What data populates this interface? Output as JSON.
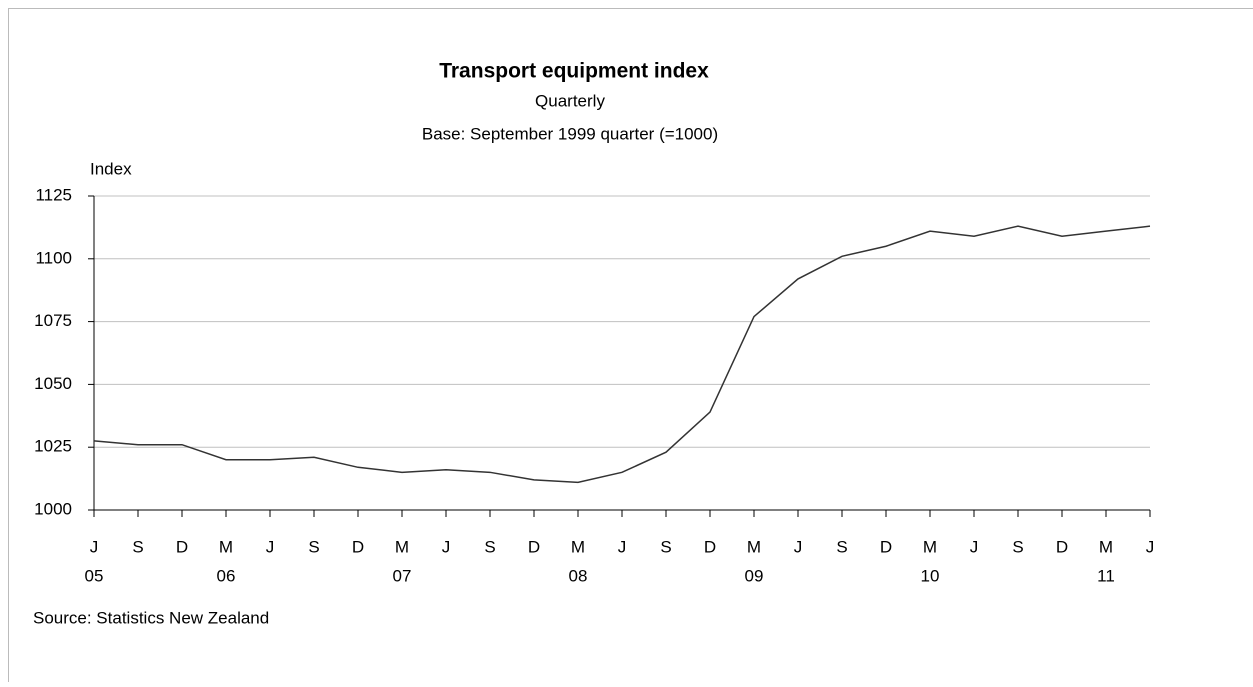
{
  "chart_data": {
    "type": "line",
    "title": "Transport equipment index",
    "subtitle": "Quarterly",
    "subtitle2": "Base: September 1999 quarter (=1000)",
    "y_label": "Index",
    "source": "Source: Statistics New Zealand",
    "categories": [
      "J",
      "S",
      "D",
      "M",
      "J",
      "S",
      "D",
      "M",
      "J",
      "S",
      "D",
      "M",
      "J",
      "S",
      "D",
      "M",
      "J",
      "S",
      "D",
      "M",
      "J",
      "S",
      "D",
      "M",
      "J"
    ],
    "year_labels": [
      "05",
      null,
      null,
      "06",
      null,
      null,
      null,
      "07",
      null,
      null,
      null,
      "08",
      null,
      null,
      null,
      "09",
      null,
      null,
      null,
      "10",
      null,
      null,
      null,
      "11",
      null
    ],
    "series": [
      {
        "name": "Transport equipment index",
        "color": "#333333",
        "values": [
          1027.5,
          1026,
          1026,
          1020,
          1020,
          1021,
          1017,
          1015,
          1016,
          1015,
          1012,
          1011,
          1015,
          1023,
          1039,
          1077,
          1092,
          1101,
          1105,
          1111,
          1109,
          1113,
          1109,
          1111,
          1113
        ]
      }
    ],
    "ylim": [
      1000,
      1125
    ],
    "yticks": [
      1000,
      1025,
      1050,
      1075,
      1100,
      1125
    ],
    "grid": true
  }
}
